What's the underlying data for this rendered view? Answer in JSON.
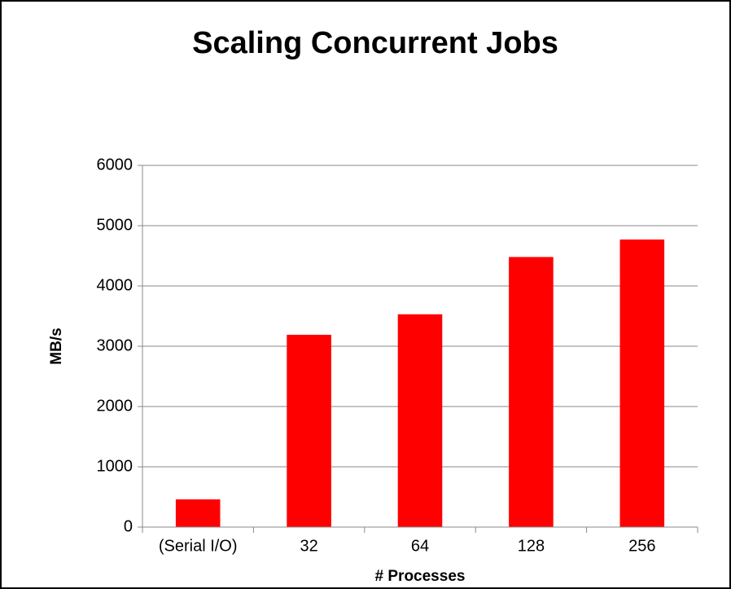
{
  "chart_data": {
    "type": "bar",
    "title": "Scaling Concurrent Jobs",
    "y_label": "MB/s",
    "x_label": "# Processes",
    "categories": [
      "(Serial I/O)",
      "32",
      "64",
      "128",
      "256"
    ],
    "values": [
      460,
      3190,
      3530,
      4480,
      4770
    ],
    "color": "#ff0000",
    "ylim": [
      0,
      6000
    ],
    "yticks": [
      0,
      1000,
      2000,
      3000,
      4000,
      5000,
      6000
    ],
    "grid": true
  }
}
